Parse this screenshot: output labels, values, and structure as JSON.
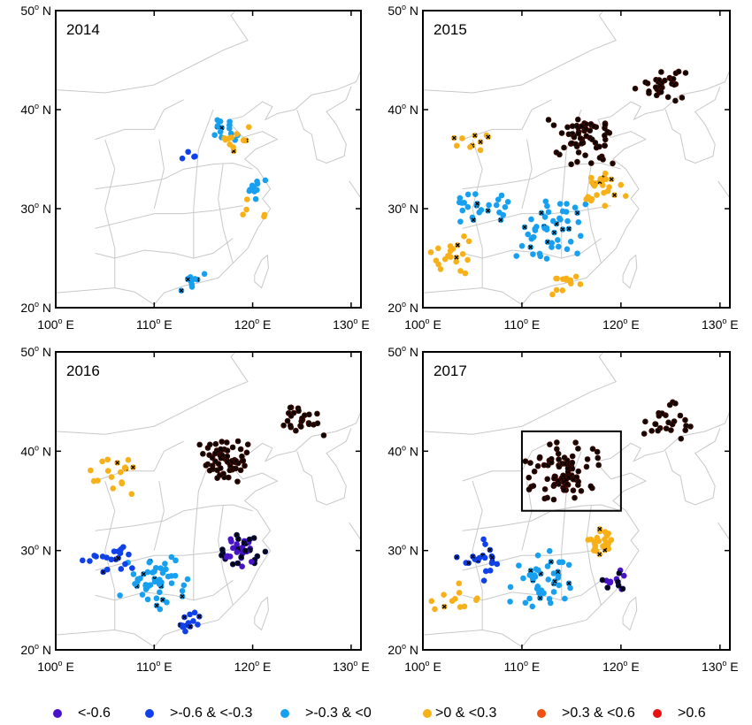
{
  "axes": {
    "lat_ticks": [
      {
        "v": 20,
        "label": "20",
        "unit": "N"
      },
      {
        "v": 30,
        "label": "30",
        "unit": "N"
      },
      {
        "v": 40,
        "label": "40",
        "unit": "N"
      },
      {
        "v": 50,
        "label": "50",
        "unit": "N"
      }
    ],
    "lon_ticks": [
      {
        "v": 100,
        "label": "100",
        "unit": "E"
      },
      {
        "v": 110,
        "label": "110",
        "unit": "E"
      },
      {
        "v": 120,
        "label": "120",
        "unit": "E"
      },
      {
        "v": 130,
        "label": "130",
        "unit": "E"
      }
    ],
    "degree_symbol": "o",
    "lon_range": [
      100,
      131
    ],
    "lat_range": [
      20,
      50
    ]
  },
  "panels": [
    {
      "title": "2014",
      "clusters": [
        {
          "lon": 117,
          "lat": 38,
          "spread": 2,
          "n": 14,
          "cat": 2,
          "mark": 0.2
        },
        {
          "lon": 118,
          "lat": 37,
          "spread": 2,
          "n": 12,
          "cat": 3,
          "mark": 0.1
        },
        {
          "lon": 120,
          "lat": 32,
          "spread": 1.5,
          "n": 10,
          "cat": 2,
          "mark": 0
        },
        {
          "lon": 114,
          "lat": 22.7,
          "spread": 1.5,
          "n": 10,
          "cat": 2,
          "mark": 0.2
        },
        {
          "lon": 120.5,
          "lat": 30,
          "spread": 1.5,
          "n": 5,
          "cat": 3,
          "mark": 0
        },
        {
          "lon": 113,
          "lat": 35,
          "spread": 1.5,
          "n": 4,
          "cat": 1,
          "mark": 0.3
        }
      ]
    },
    {
      "title": "2015",
      "clusters": [
        {
          "lon": 116,
          "lat": 37,
          "spread": 3.5,
          "n": 60,
          "cat": 5,
          "mark": 1
        },
        {
          "lon": 124,
          "lat": 43,
          "spread": 3,
          "n": 30,
          "cat": 5,
          "mark": 1
        },
        {
          "lon": 113,
          "lat": 28,
          "spread": 4,
          "n": 50,
          "cat": 2,
          "mark": 0.15
        },
        {
          "lon": 106,
          "lat": 30,
          "spread": 3,
          "n": 25,
          "cat": 2,
          "mark": 0.2
        },
        {
          "lon": 103,
          "lat": 25,
          "spread": 3,
          "n": 20,
          "cat": 3,
          "mark": 0.2
        },
        {
          "lon": 118,
          "lat": 32,
          "spread": 2.5,
          "n": 25,
          "cat": 3,
          "mark": 0.2
        },
        {
          "lon": 114,
          "lat": 22.8,
          "spread": 2,
          "n": 12,
          "cat": 3,
          "mark": 0.2
        },
        {
          "lon": 105,
          "lat": 37,
          "spread": 2,
          "n": 10,
          "cat": 3,
          "mark": 0.5
        }
      ]
    },
    {
      "title": "2016",
      "clusters": [
        {
          "lon": 117,
          "lat": 39,
          "spread": 3,
          "n": 60,
          "cat": 5,
          "mark": 1
        },
        {
          "lon": 125,
          "lat": 43,
          "spread": 3,
          "n": 25,
          "cat": 5,
          "mark": 1
        },
        {
          "lon": 119,
          "lat": 30,
          "spread": 2.5,
          "n": 40,
          "cat": 0,
          "mark": 0.5
        },
        {
          "lon": 110,
          "lat": 27,
          "spread": 4,
          "n": 50,
          "cat": 2,
          "mark": 0.15
        },
        {
          "lon": 105,
          "lat": 29,
          "spread": 3,
          "n": 20,
          "cat": 1,
          "mark": 0.3
        },
        {
          "lon": 106,
          "lat": 38,
          "spread": 3,
          "n": 18,
          "cat": 3,
          "mark": 0.2
        },
        {
          "lon": 114,
          "lat": 22.8,
          "spread": 2,
          "n": 14,
          "cat": 1,
          "mark": 0.3
        }
      ]
    },
    {
      "title": "2017",
      "clusters": [
        {
          "lon": 114,
          "lat": 38,
          "spread": 4,
          "n": 80,
          "cat": 5,
          "mark": 1
        },
        {
          "lon": 125,
          "lat": 43,
          "spread": 3,
          "n": 25,
          "cat": 5,
          "mark": 1
        },
        {
          "lon": 118,
          "lat": 31,
          "spread": 2,
          "n": 25,
          "cat": 3,
          "mark": 0.2
        },
        {
          "lon": 112,
          "lat": 27,
          "spread": 4,
          "n": 45,
          "cat": 2,
          "mark": 0.2
        },
        {
          "lon": 106,
          "lat": 29,
          "spread": 3,
          "n": 20,
          "cat": 1,
          "mark": 0.4
        },
        {
          "lon": 119,
          "lat": 27,
          "spread": 2,
          "n": 14,
          "cat": 0,
          "mark": 0.4
        },
        {
          "lon": 103,
          "lat": 25,
          "spread": 3,
          "n": 12,
          "cat": 3,
          "mark": 0.1
        }
      ],
      "box": {
        "lon": [
          110,
          120
        ],
        "lat": [
          34,
          42
        ]
      }
    }
  ],
  "legend": [
    {
      "label": "<-0.6",
      "color": "#4a12c8"
    },
    {
      "label": ">-0.6 & <-0.3",
      "color": "#1040e8"
    },
    {
      "label": ">-0.3 & <0",
      "color": "#18a0f0"
    },
    {
      "label": ">0 & <0.3",
      "color": "#f8b018"
    },
    {
      "label": ">0.3 & <0.6",
      "color": "#f05010"
    },
    {
      "label": ">0.6",
      "color": "#e81010"
    }
  ],
  "marked_fill": "#3a0a00",
  "dark_blue": "#0a1050",
  "boundary_color": "#c8c8c8"
}
